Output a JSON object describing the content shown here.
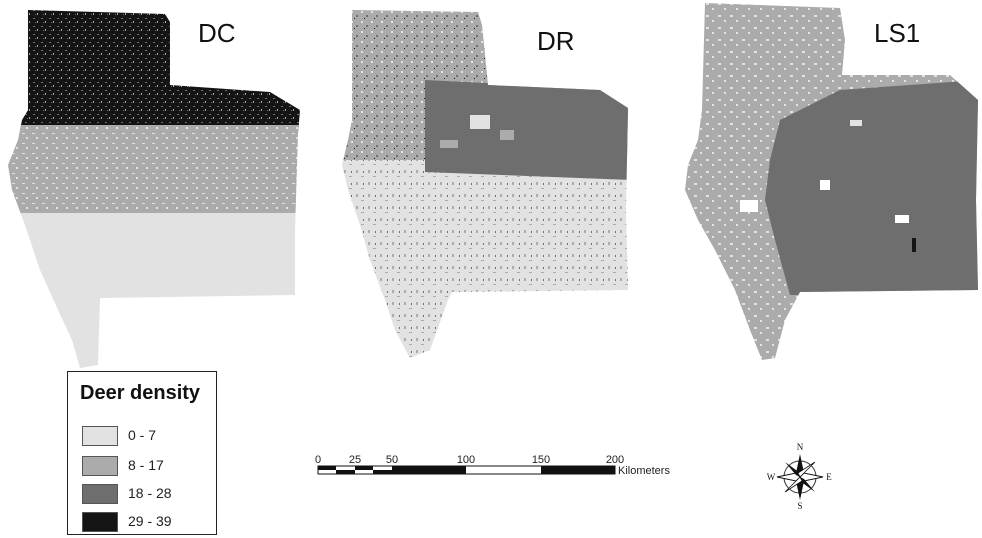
{
  "maps": [
    {
      "title": "DC"
    },
    {
      "title": "DR"
    },
    {
      "title": "LS1"
    }
  ],
  "legend": {
    "title": "Deer density",
    "classes": [
      {
        "label": "0 - 7",
        "color": "#e2e2e2"
      },
      {
        "label": "8 - 17",
        "color": "#ababab"
      },
      {
        "label": "18 - 28",
        "color": "#6e6e6e"
      },
      {
        "label": "29 - 39",
        "color": "#141414"
      }
    ]
  },
  "scale_bar": {
    "ticks": [
      "0",
      "25",
      "50",
      "100",
      "150",
      "200"
    ],
    "unit": "Kilometers"
  },
  "north_arrow": {
    "n": "N",
    "s": "S",
    "e": "E",
    "w": "W",
    "icon": "compass-rose-icon"
  }
}
